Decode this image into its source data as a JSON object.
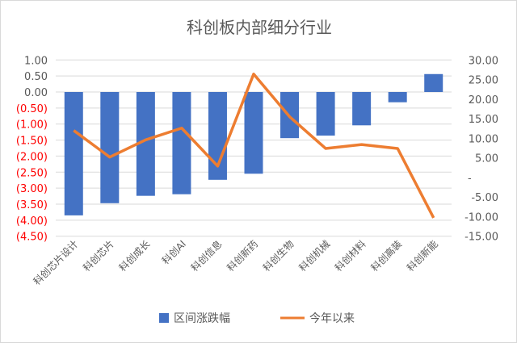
{
  "chart_data": {
    "type": "bar+line",
    "title": "科创板内部细分行业",
    "categories": [
      "科创芯片设计",
      "科创芯片",
      "科创成长",
      "科创AI",
      "科创信息",
      "科创新药",
      "科创生物",
      "科创机械",
      "科创材料",
      "科创高装",
      "科创新能"
    ],
    "series": [
      {
        "name": "区间涨跌幅",
        "type": "bar",
        "axis": "left",
        "color": "#4472C4",
        "values": [
          -3.85,
          -3.47,
          -3.24,
          -3.19,
          -2.74,
          -2.55,
          -1.44,
          -1.36,
          -1.04,
          -0.32,
          0.56
        ]
      },
      {
        "name": "今年以来",
        "type": "line",
        "axis": "right",
        "color": "#ED7D31",
        "values": [
          12.0,
          5.2,
          9.6,
          12.6,
          2.9,
          26.4,
          15.5,
          7.4,
          8.4,
          7.4,
          -10.3
        ]
      }
    ],
    "left_axis": {
      "ylim": [
        -4.5,
        1.0
      ],
      "ticks": [
        "1.00",
        "0.50",
        "0.00",
        "(0.50)",
        "(1.00)",
        "(1.50)",
        "(2.00)",
        "(2.50)",
        "(3.00)",
        "(3.50)",
        "(4.00)",
        "(4.50)"
      ],
      "negative_color": "#FF0000"
    },
    "right_axis": {
      "ylim": [
        -15,
        30
      ],
      "ticks": [
        "30.00",
        "25.00",
        "20.00",
        "15.00",
        "10.00",
        "5.00",
        "-",
        "-5.00",
        "-10.00",
        "-15.00"
      ]
    },
    "grid": true,
    "legend": "bottom"
  }
}
